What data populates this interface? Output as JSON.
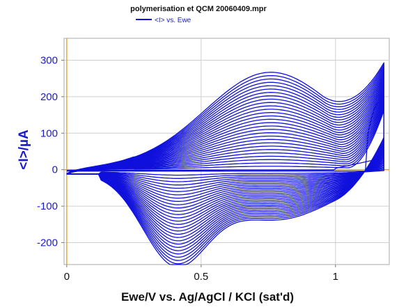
{
  "chart_data": {
    "type": "line",
    "title": "polymerisation et QCM 20060409.mpr",
    "legend": {
      "placement": "top-center",
      "entries": [
        "<I> vs. Ewe"
      ]
    },
    "xlabel": "Ewe/V vs. Ag/AgCl / KCl (sat'd)",
    "ylabel": "<I>/µA",
    "xlim": [
      -0.01,
      1.2
    ],
    "ylim": [
      -260,
      360
    ],
    "xticks": [
      "0",
      "0.5",
      "1"
    ],
    "yticks": [
      "-200",
      "-100",
      "0",
      "100",
      "200",
      "300"
    ],
    "xtick_values": [
      0,
      0.5,
      1
    ],
    "ytick_values": [
      -200,
      -100,
      0,
      100,
      200,
      300
    ],
    "grid": true,
    "zero_line_color": "#e8a000",
    "series_color": "#1010dd",
    "cycles": 30,
    "sweep_range": [
      0,
      1.18
    ],
    "peak_anodic": {
      "potential": 0.75,
      "current_first": 0,
      "current_last": 235
    },
    "peak_cathodic": {
      "potential": 0.4,
      "current_first": 0,
      "current_last": -230
    },
    "first_cycle_turn_peak": {
      "potential": 1.16,
      "current": 185
    },
    "upper_vertex_current_last": 350
  }
}
